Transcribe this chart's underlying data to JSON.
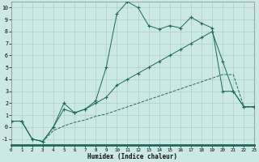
{
  "xlabel": "Humidex (Indice chaleur)",
  "bg_color": "#cce8e4",
  "line_color": "#1a6b5a",
  "xlim": [
    0,
    23
  ],
  "ylim": [
    -1.5,
    10.5
  ],
  "xtick_vals": [
    0,
    1,
    2,
    3,
    4,
    5,
    6,
    7,
    8,
    9,
    10,
    11,
    12,
    13,
    14,
    15,
    16,
    17,
    18,
    19,
    20,
    21,
    22,
    23
  ],
  "ytick_vals": [
    -1,
    0,
    1,
    2,
    3,
    4,
    5,
    6,
    7,
    8,
    9,
    10
  ],
  "line1_x": [
    0,
    1,
    2,
    3,
    4,
    5,
    6,
    7,
    8,
    9,
    10,
    11,
    12,
    13,
    14,
    15,
    16,
    17,
    18,
    19,
    20,
    21,
    22,
    23
  ],
  "line1_y": [
    0.5,
    0.5,
    -1.0,
    -1.2,
    -0.3,
    0.1,
    0.4,
    0.6,
    0.9,
    1.1,
    1.4,
    1.7,
    2.0,
    2.3,
    2.6,
    2.9,
    3.2,
    3.5,
    3.8,
    4.1,
    4.4,
    4.4,
    1.7,
    1.7
  ],
  "line2_x": [
    0,
    1,
    2,
    3,
    4,
    5,
    6,
    7,
    8,
    9,
    10,
    11,
    12,
    13,
    14,
    15,
    16,
    17,
    18,
    19,
    20,
    21,
    22,
    23
  ],
  "line2_y": [
    0.5,
    0.5,
    -1.0,
    -1.2,
    0.0,
    2.0,
    1.2,
    1.5,
    2.2,
    5.0,
    9.5,
    10.5,
    10.0,
    8.5,
    8.2,
    8.5,
    8.3,
    9.2,
    8.7,
    8.3,
    3.0,
    3.0,
    1.7,
    1.7
  ],
  "line3_x": [
    0,
    1,
    2,
    3,
    4,
    5,
    6,
    7,
    8,
    9,
    10,
    11,
    12,
    13,
    14,
    15,
    16,
    17,
    18,
    19,
    20,
    21,
    22,
    23
  ],
  "line3_y": [
    0.5,
    0.5,
    -1.0,
    -1.2,
    0.0,
    1.5,
    1.2,
    1.5,
    2.0,
    2.5,
    3.5,
    4.0,
    4.5,
    5.0,
    5.5,
    6.0,
    6.5,
    7.0,
    7.5,
    8.0,
    5.5,
    3.0,
    1.7,
    1.7
  ]
}
